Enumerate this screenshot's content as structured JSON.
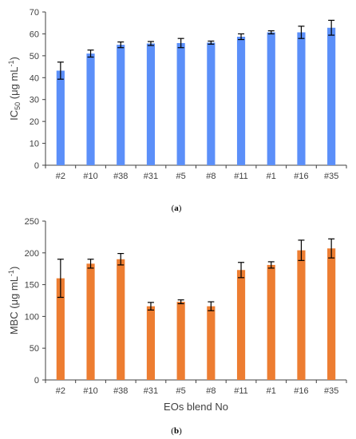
{
  "chart_data": [
    {
      "type": "bar",
      "panel_label": "(a)",
      "categories": [
        "#2",
        "#10",
        "#38",
        "#31",
        "#5",
        "#8",
        "#11",
        "#1",
        "#16",
        "#35"
      ],
      "values": [
        43.2,
        51.0,
        55.0,
        55.6,
        55.8,
        56.0,
        58.7,
        60.7,
        60.7,
        62.8
      ],
      "errors": [
        3.9,
        1.6,
        1.3,
        0.9,
        2.1,
        0.7,
        1.3,
        0.7,
        2.8,
        3.4
      ],
      "ylabel_main": "IC",
      "ylabel_sub": "50",
      "ylabel_rest": " (μg mL",
      "ylabel_sup": "-1",
      "ylabel_end": ")",
      "xlabel": "",
      "ylim": [
        0,
        70
      ],
      "yticks": [
        "0",
        "10",
        "20",
        "30",
        "40",
        "50",
        "60",
        "70"
      ],
      "bar_color": "#5b8ff9",
      "grid": false
    },
    {
      "type": "bar",
      "panel_label": "(b)",
      "categories": [
        "#2",
        "#10",
        "#38",
        "#31",
        "#5",
        "#8",
        "#11",
        "#1",
        "#16",
        "#35"
      ],
      "values": [
        160,
        183,
        190,
        116,
        123,
        116,
        173,
        181,
        204,
        207
      ],
      "errors": [
        30,
        7,
        9,
        6,
        3,
        7,
        12,
        5,
        16,
        15
      ],
      "ylabel_main": "MBC (μg mL",
      "ylabel_sup": "-1",
      "ylabel_end": ")",
      "xlabel": "EOs blend No",
      "ylim": [
        0,
        250
      ],
      "yticks": [
        "0",
        "50",
        "100",
        "150",
        "200",
        "250"
      ],
      "bar_color": "#ed7d31",
      "grid": false
    }
  ]
}
